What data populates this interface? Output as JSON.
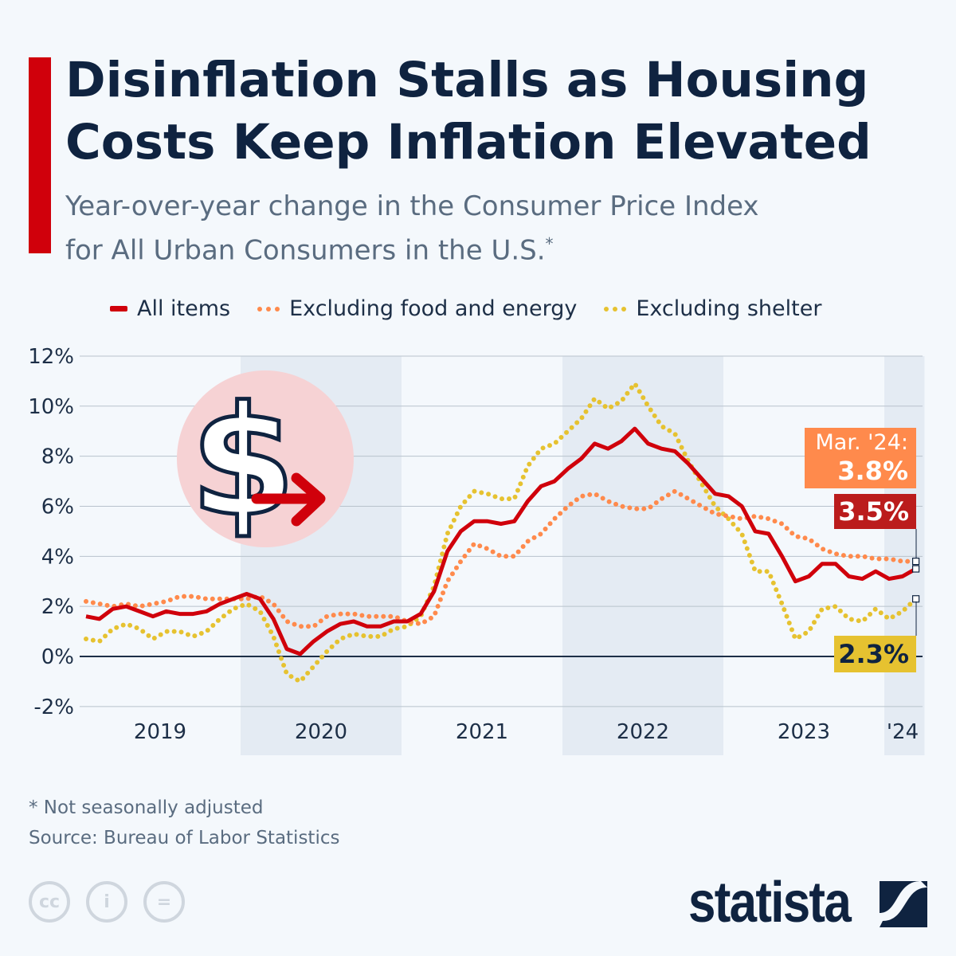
{
  "header": {
    "title_line1": "Disinflation Stalls as Housing",
    "title_line2": "Costs Keep Inflation Elevated",
    "subtitle_line1": "Year-over-year change in the Consumer Price Index",
    "subtitle_line2": "for All Urban Consumers in the U.S.",
    "subtitle_marker": "*"
  },
  "colors": {
    "all_items": "#d0000b",
    "core": "#ff8a4c",
    "ex_shelter": "#e6c230",
    "title": "#0f2340",
    "band": "#e4ebf3"
  },
  "callouts": {
    "core_date": "Mar. '24:",
    "core_value": "3.8%",
    "all_value": "3.5%",
    "shelter_value": "2.3%"
  },
  "chart_data": {
    "type": "line",
    "title": "Disinflation Stalls as Housing Costs Keep Inflation Elevated",
    "x_start": "2019-01",
    "x_end": "2024-03",
    "x_frequency": "monthly",
    "x_tick_labels": [
      "2019",
      "2020",
      "2021",
      "2022",
      "2023",
      "'24"
    ],
    "y_tick_labels": [
      "12%",
      "10%",
      "8%",
      "6%",
      "4%",
      "2%",
      "0%",
      "-2%"
    ],
    "y_ticks": [
      12,
      10,
      8,
      6,
      4,
      2,
      0,
      -2
    ],
    "ylim": [
      -2,
      12
    ],
    "grid": true,
    "legend_position": "top",
    "series": [
      {
        "name": "All items",
        "style": "solid",
        "values": [
          1.6,
          1.5,
          1.9,
          2.0,
          1.8,
          1.6,
          1.8,
          1.7,
          1.7,
          1.8,
          2.1,
          2.3,
          2.5,
          2.3,
          1.5,
          0.3,
          0.1,
          0.6,
          1.0,
          1.3,
          1.4,
          1.2,
          1.2,
          1.4,
          1.4,
          1.7,
          2.6,
          4.2,
          5.0,
          5.4,
          5.4,
          5.3,
          5.4,
          6.2,
          6.8,
          7.0,
          7.5,
          7.9,
          8.5,
          8.3,
          8.6,
          9.1,
          8.5,
          8.3,
          8.2,
          7.7,
          7.1,
          6.5,
          6.4,
          6.0,
          5.0,
          4.9,
          4.0,
          3.0,
          3.2,
          3.7,
          3.7,
          3.2,
          3.1,
          3.4,
          3.1,
          3.2,
          3.5
        ]
      },
      {
        "name": "Excluding food and energy",
        "style": "dotted",
        "values": [
          2.2,
          2.1,
          2.0,
          2.1,
          2.0,
          2.1,
          2.2,
          2.4,
          2.4,
          2.3,
          2.3,
          2.3,
          2.3,
          2.4,
          2.1,
          1.4,
          1.2,
          1.2,
          1.6,
          1.7,
          1.7,
          1.6,
          1.6,
          1.6,
          1.4,
          1.3,
          1.6,
          3.0,
          3.8,
          4.5,
          4.3,
          4.0,
          4.0,
          4.6,
          4.9,
          5.5,
          6.0,
          6.4,
          6.5,
          6.2,
          6.0,
          5.9,
          5.9,
          6.3,
          6.6,
          6.3,
          6.0,
          5.7,
          5.6,
          5.5,
          5.6,
          5.5,
          5.3,
          4.8,
          4.7,
          4.3,
          4.1,
          4.0,
          4.0,
          3.9,
          3.9,
          3.8,
          3.8
        ]
      },
      {
        "name": "Excluding shelter",
        "style": "dotted",
        "values": [
          0.7,
          0.6,
          1.1,
          1.3,
          1.1,
          0.7,
          1.0,
          1.0,
          0.8,
          1.0,
          1.5,
          1.9,
          2.1,
          1.8,
          0.8,
          -0.7,
          -1.0,
          -0.4,
          0.2,
          0.7,
          0.9,
          0.8,
          0.8,
          1.1,
          1.2,
          1.6,
          2.8,
          4.9,
          6.0,
          6.6,
          6.5,
          6.3,
          6.3,
          7.6,
          8.3,
          8.5,
          9.0,
          9.5,
          10.3,
          9.9,
          10.2,
          10.9,
          10.0,
          9.2,
          8.9,
          7.8,
          6.9,
          6.0,
          5.5,
          4.9,
          3.4,
          3.4,
          2.1,
          0.7,
          1.0,
          1.9,
          2.0,
          1.5,
          1.4,
          1.9,
          1.5,
          1.8,
          2.3
        ]
      }
    ]
  },
  "footer": {
    "note": "* Not seasonally adjusted",
    "source": "Source: Bureau of Labor Statistics",
    "cc_icon": "cc",
    "by_icon": "i",
    "nd_icon": "=",
    "brand": "statista"
  }
}
